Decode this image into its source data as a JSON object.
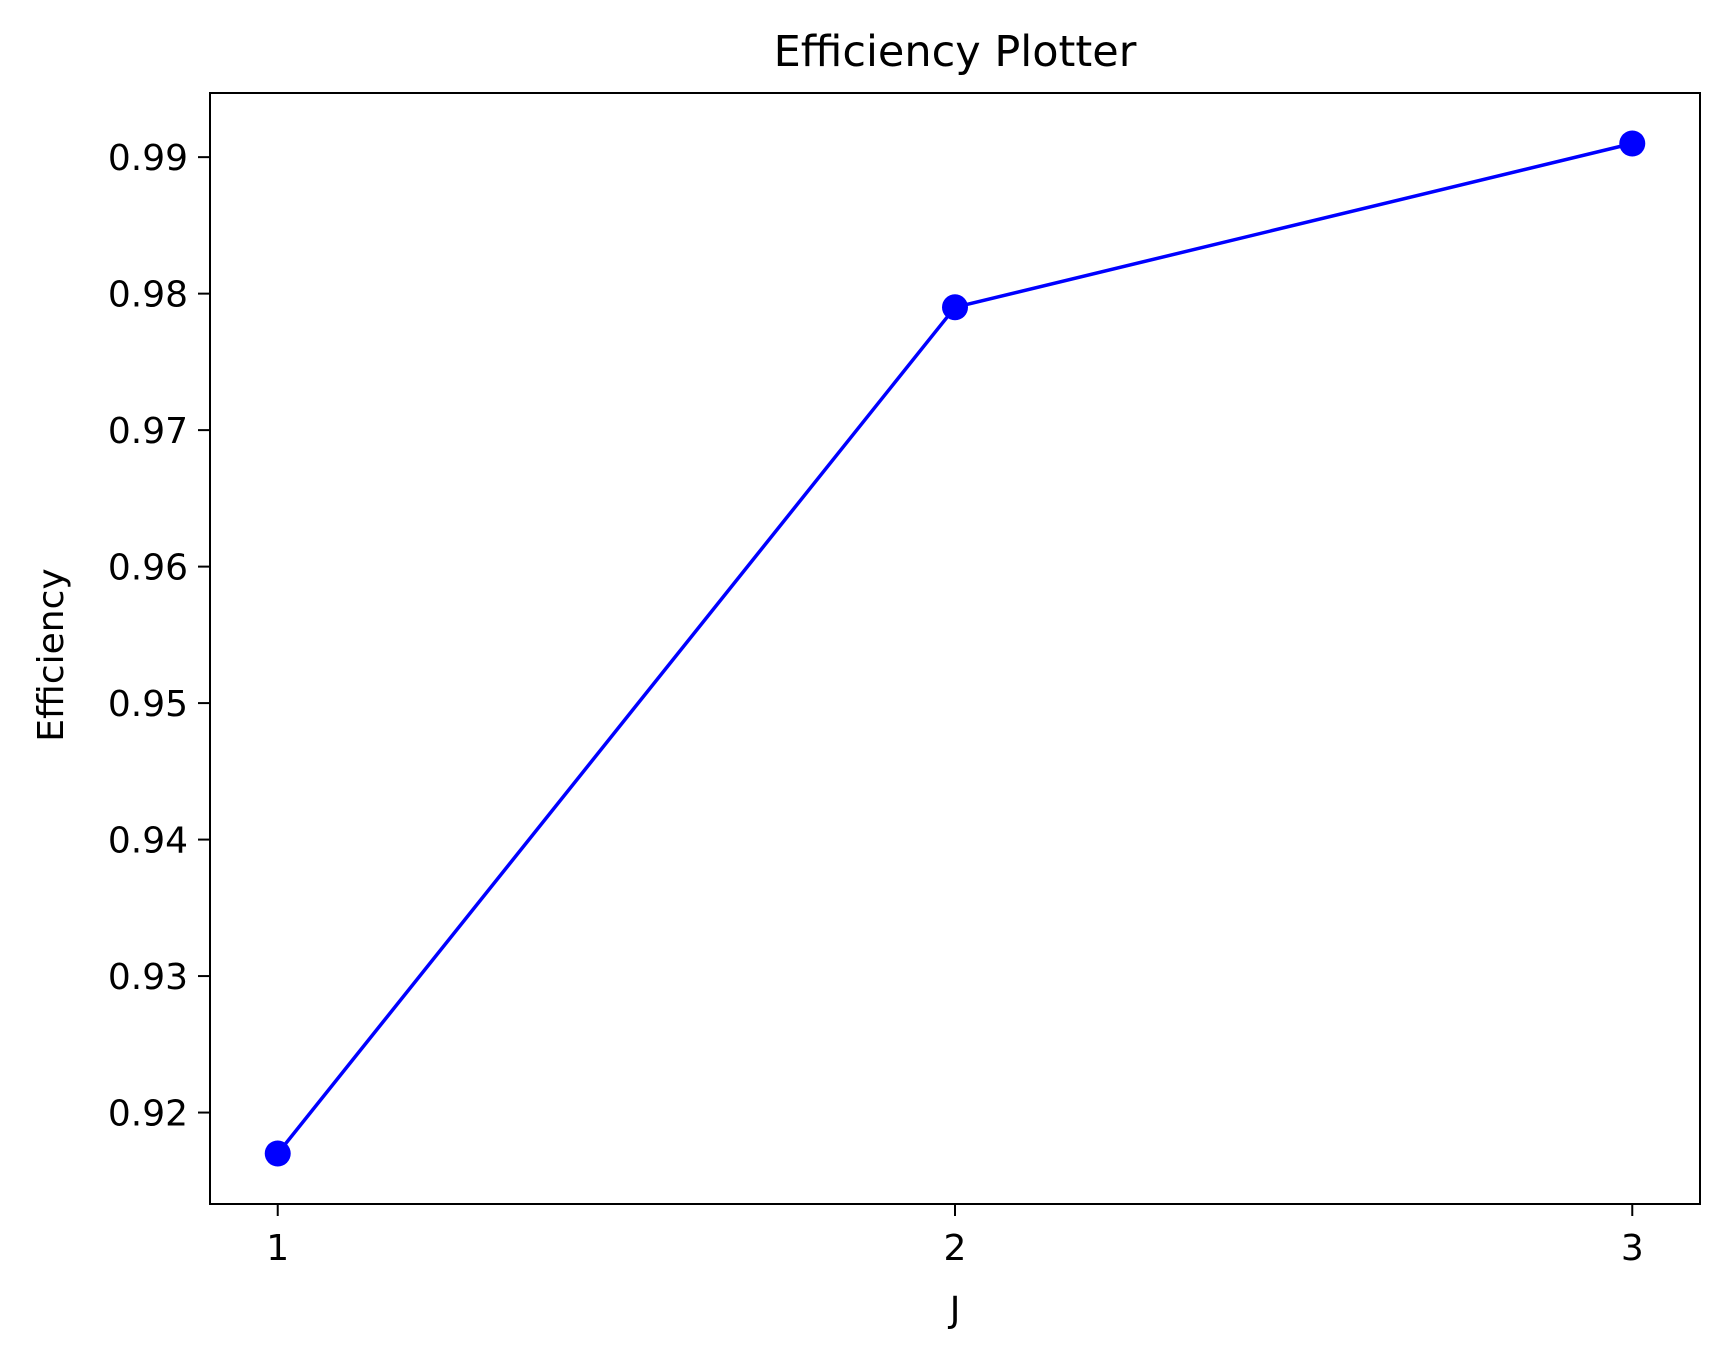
{
  "chart_data": {
    "type": "line",
    "title": "Efficiency Plotter",
    "xlabel": "J",
    "ylabel": "Efficiency",
    "x": [
      1,
      2,
      3
    ],
    "series": [
      {
        "values": [
          0.917,
          0.979,
          0.991
        ],
        "color": "#0000ff",
        "marker": "circle"
      }
    ],
    "xticks": [
      1,
      2,
      3
    ],
    "xtick_labels": [
      "1",
      "2",
      "3"
    ],
    "yticks": [
      0.92,
      0.93,
      0.94,
      0.95,
      0.96,
      0.97,
      0.98,
      0.99
    ],
    "ytick_labels": [
      "0.92",
      "0.93",
      "0.94",
      "0.95",
      "0.96",
      "0.97",
      "0.98",
      "0.99"
    ],
    "xlim": [
      0.9,
      3.1
    ],
    "ylim": [
      0.9133,
      0.9947
    ],
    "grid": false,
    "legend": "none"
  }
}
